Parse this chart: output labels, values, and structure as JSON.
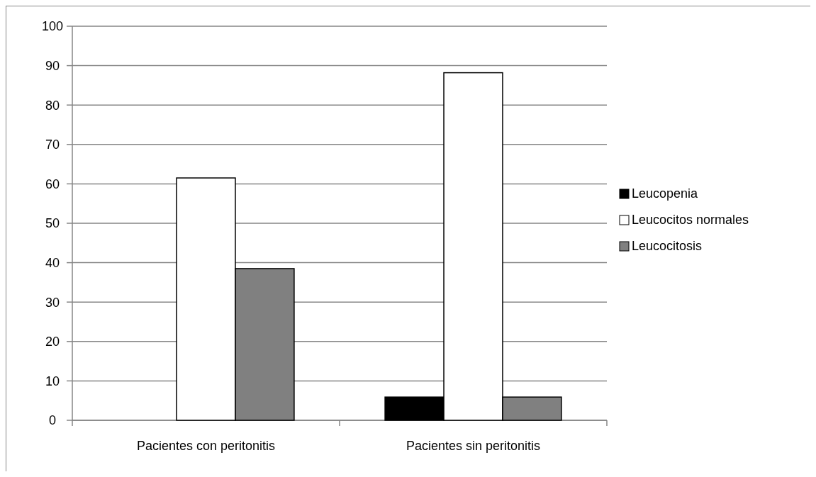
{
  "chart_data": {
    "type": "bar",
    "categories": [
      "Pacientes con peritonitis",
      "Pacientes sin peritonitis"
    ],
    "series": [
      {
        "name": "Leucopenia",
        "color": "#000000",
        "values": [
          0,
          5.9
        ]
      },
      {
        "name": "Leucocitos normales",
        "color": "#ffffff",
        "values": [
          61.5,
          88.2
        ]
      },
      {
        "name": "Leucocitosis",
        "color": "#808080",
        "values": [
          38.5,
          5.9
        ]
      }
    ],
    "ylim": [
      0,
      100
    ],
    "yticks": [
      0,
      10,
      20,
      30,
      40,
      50,
      60,
      70,
      80,
      90,
      100
    ],
    "grid": "y",
    "legend": "right"
  }
}
